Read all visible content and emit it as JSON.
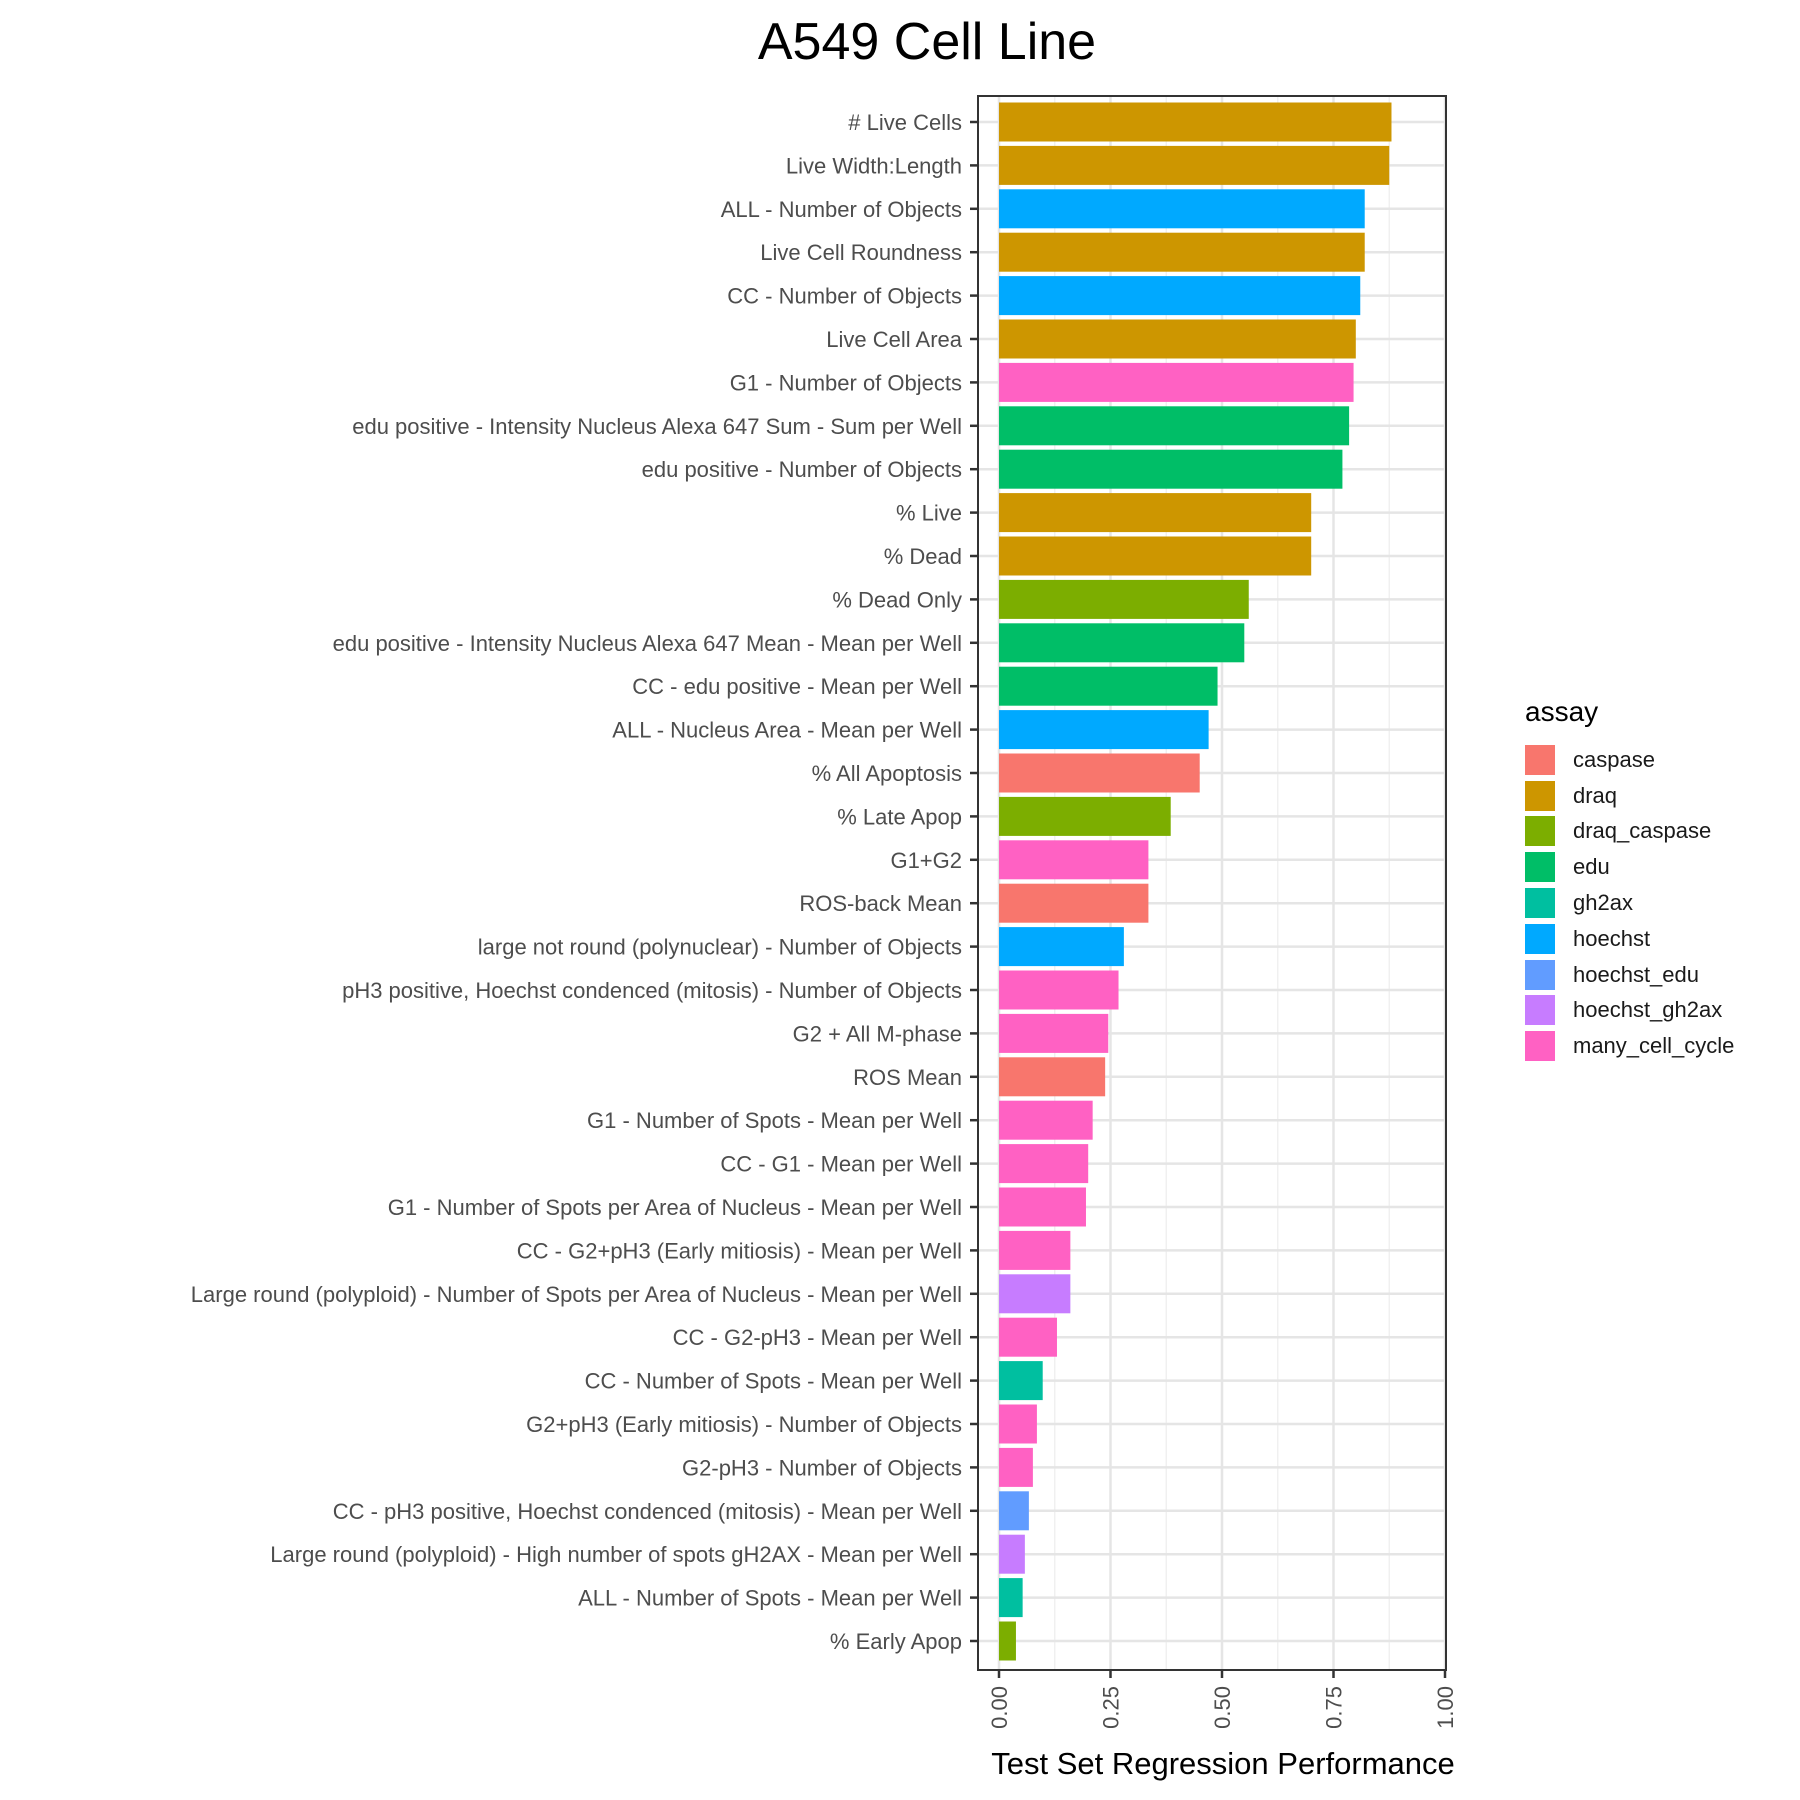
{
  "chart_data": {
    "type": "bar",
    "orientation": "horizontal",
    "title": "A549 Cell Line",
    "xlabel": "Test Set Regression Performance",
    "ylabel": "",
    "xlim": [
      0,
      1
    ],
    "x_ticks": [
      "0.00",
      "0.25",
      "0.50",
      "0.75",
      "1.00"
    ],
    "x_tick_values": [
      0,
      0.25,
      0.5,
      0.75,
      1.0
    ],
    "grid": true,
    "legend_title": "assay",
    "legend_position": "right",
    "assays": [
      {
        "name": "caspase",
        "color": "#F8766D"
      },
      {
        "name": "draq",
        "color": "#CD9600"
      },
      {
        "name": "draq_caspase",
        "color": "#7CAE00"
      },
      {
        "name": "edu",
        "color": "#00BE67"
      },
      {
        "name": "gh2ax",
        "color": "#00BFA0"
      },
      {
        "name": "hoechst",
        "color": "#00A9FF"
      },
      {
        "name": "hoechst_edu",
        "color": "#619CFF"
      },
      {
        "name": "hoechst_gh2ax",
        "color": "#C77CFF"
      },
      {
        "name": "many_cell_cycle",
        "color": "#FF61C3"
      }
    ],
    "bars": [
      {
        "label": "# Live Cells",
        "value": 0.88,
        "assay": "draq"
      },
      {
        "label": "Live Width:Length",
        "value": 0.875,
        "assay": "draq"
      },
      {
        "label": "ALL - Number of Objects",
        "value": 0.82,
        "assay": "hoechst"
      },
      {
        "label": "Live Cell Roundness",
        "value": 0.82,
        "assay": "draq"
      },
      {
        "label": "CC - Number of Objects",
        "value": 0.81,
        "assay": "hoechst"
      },
      {
        "label": "Live Cell Area",
        "value": 0.8,
        "assay": "draq"
      },
      {
        "label": "G1 - Number of Objects",
        "value": 0.795,
        "assay": "many_cell_cycle"
      },
      {
        "label": "edu positive - Intensity Nucleus Alexa 647 Sum - Sum per Well",
        "value": 0.785,
        "assay": "edu"
      },
      {
        "label": "edu positive - Number of Objects",
        "value": 0.77,
        "assay": "edu"
      },
      {
        "label": "% Live",
        "value": 0.7,
        "assay": "draq"
      },
      {
        "label": "% Dead",
        "value": 0.7,
        "assay": "draq"
      },
      {
        "label": "% Dead Only",
        "value": 0.56,
        "assay": "draq_caspase"
      },
      {
        "label": "edu positive - Intensity Nucleus Alexa 647 Mean - Mean per Well",
        "value": 0.55,
        "assay": "edu"
      },
      {
        "label": "CC - edu positive - Mean per Well",
        "value": 0.49,
        "assay": "edu"
      },
      {
        "label": "ALL - Nucleus Area - Mean per Well",
        "value": 0.47,
        "assay": "hoechst"
      },
      {
        "label": "% All Apoptosis",
        "value": 0.45,
        "assay": "caspase"
      },
      {
        "label": "% Late Apop",
        "value": 0.385,
        "assay": "draq_caspase"
      },
      {
        "label": "G1+G2",
        "value": 0.335,
        "assay": "many_cell_cycle"
      },
      {
        "label": "ROS-back Mean",
        "value": 0.335,
        "assay": "caspase"
      },
      {
        "label": "large not round (polynuclear) - Number of Objects",
        "value": 0.28,
        "assay": "hoechst"
      },
      {
        "label": "pH3 positive, Hoechst condenced (mitosis) - Number of Objects",
        "value": 0.268,
        "assay": "many_cell_cycle"
      },
      {
        "label": "G2 + All M-phase",
        "value": 0.245,
        "assay": "many_cell_cycle"
      },
      {
        "label": "ROS Mean",
        "value": 0.238,
        "assay": "caspase"
      },
      {
        "label": "G1 - Number of Spots - Mean per Well",
        "value": 0.21,
        "assay": "many_cell_cycle"
      },
      {
        "label": "CC - G1 - Mean per Well",
        "value": 0.2,
        "assay": "many_cell_cycle"
      },
      {
        "label": "G1 - Number of Spots per Area of Nucleus - Mean per Well",
        "value": 0.195,
        "assay": "many_cell_cycle"
      },
      {
        "label": "CC - G2+pH3 (Early mitiosis) - Mean per Well",
        "value": 0.16,
        "assay": "many_cell_cycle"
      },
      {
        "label": "Large round (polyploid) - Number of Spots per Area of Nucleus - Mean per Well",
        "value": 0.16,
        "assay": "hoechst_gh2ax"
      },
      {
        "label": "CC - G2-pH3 - Mean per Well",
        "value": 0.13,
        "assay": "many_cell_cycle"
      },
      {
        "label": "CC - Number of Spots - Mean per Well",
        "value": 0.098,
        "assay": "gh2ax"
      },
      {
        "label": "G2+pH3 (Early mitiosis) - Number of Objects",
        "value": 0.085,
        "assay": "many_cell_cycle"
      },
      {
        "label": "G2-pH3 - Number of Objects",
        "value": 0.076,
        "assay": "many_cell_cycle"
      },
      {
        "label": "CC - pH3 positive, Hoechst condenced (mitosis) - Mean per Well",
        "value": 0.067,
        "assay": "hoechst_edu"
      },
      {
        "label": "Large round (polyploid) - High number of spots gH2AX - Mean per Well",
        "value": 0.058,
        "assay": "hoechst_gh2ax"
      },
      {
        "label": "ALL - Number of Spots - Mean per Well",
        "value": 0.053,
        "assay": "gh2ax"
      },
      {
        "label": "% Early Apop",
        "value": 0.038,
        "assay": "draq_caspase"
      }
    ]
  }
}
